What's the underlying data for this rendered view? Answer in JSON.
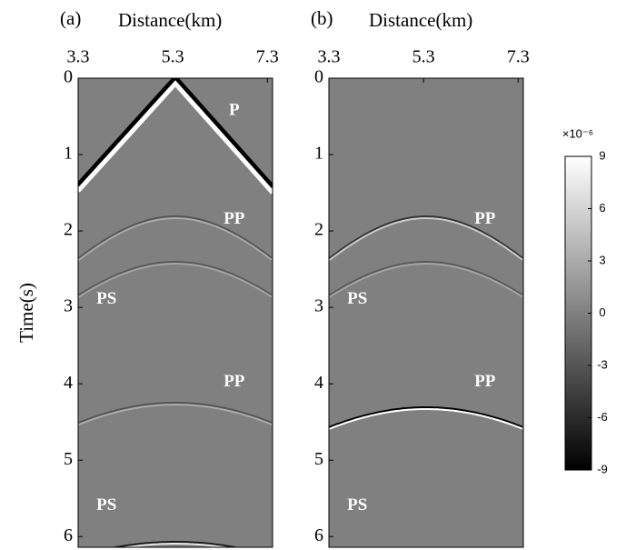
{
  "chart_data": [
    {
      "type": "seismogram",
      "panel_label": "(a)",
      "xlabel": "Distance(km)",
      "ylabel": "Time(s)",
      "xlim": [
        3.3,
        7.41
      ],
      "xticks": [
        3.3,
        5.3,
        7.3
      ],
      "ylim": [
        0,
        6.14
      ],
      "yticks": [
        0,
        1,
        2,
        3,
        4,
        5,
        6
      ],
      "annotations": [
        {
          "text": "P",
          "x": 6.6,
          "y": 0.43
        },
        {
          "text": "PP",
          "x": 6.6,
          "y": 1.85
        },
        {
          "text": "PS",
          "x": 3.9,
          "y": 2.9
        },
        {
          "text": "PP",
          "x": 6.6,
          "y": 3.98
        },
        {
          "text": "PS",
          "x": 3.9,
          "y": 5.6
        }
      ]
    },
    {
      "type": "seismogram",
      "panel_label": "(b)",
      "xlabel": "Distance(km)",
      "xlim": [
        3.3,
        7.41
      ],
      "xticks": [
        3.3,
        5.3,
        7.3
      ],
      "ylim": [
        0,
        6.14
      ],
      "yticks": [
        0,
        1,
        2,
        3,
        4,
        5,
        6
      ],
      "annotations": [
        {
          "text": "PP",
          "x": 6.6,
          "y": 1.85
        },
        {
          "text": "PS",
          "x": 3.9,
          "y": 2.9
        },
        {
          "text": "PP",
          "x": 6.6,
          "y": 3.98
        },
        {
          "text": "PS",
          "x": 3.9,
          "y": 5.6
        }
      ]
    },
    {
      "type": "colorbar",
      "title": "×10⁻⁶",
      "ylim": [
        -9,
        9
      ],
      "yticks": [
        9,
        6,
        3,
        0,
        -3,
        -6,
        -9
      ]
    }
  ]
}
